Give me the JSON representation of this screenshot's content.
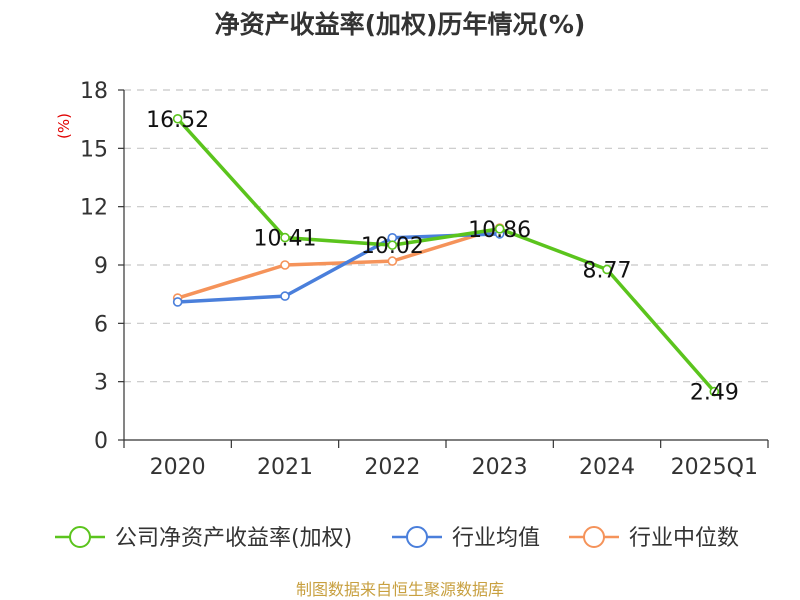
{
  "chart_data": {
    "type": "line",
    "title": "净资产收益率(加权)历年情况(%)",
    "ylabel": "(%)",
    "xlabel": "",
    "categories": [
      "2020",
      "2021",
      "2022",
      "2023",
      "2024",
      "2025Q1"
    ],
    "ylim": [
      0,
      18
    ],
    "yticks": [
      0,
      3,
      6,
      9,
      12,
      15,
      18
    ],
    "grid": true,
    "legend_position": "bottom",
    "series": [
      {
        "name": "公司净资产收益率(加权)",
        "color": "#5bc41d",
        "values": [
          16.52,
          10.41,
          10.02,
          10.86,
          8.77,
          2.49
        ],
        "labels": [
          "16.52",
          "10.41",
          "10.02",
          "10.86",
          "8.77",
          "2.49"
        ]
      },
      {
        "name": "行业均值",
        "color": "#4a7fdb",
        "values": [
          7.1,
          7.4,
          10.4,
          10.6,
          null,
          null
        ]
      },
      {
        "name": "行业中位数",
        "color": "#f5935a",
        "values": [
          7.3,
          9.0,
          9.2,
          10.9,
          null,
          null
        ]
      }
    ],
    "source": "制图数据来自恒生聚源数据库"
  }
}
